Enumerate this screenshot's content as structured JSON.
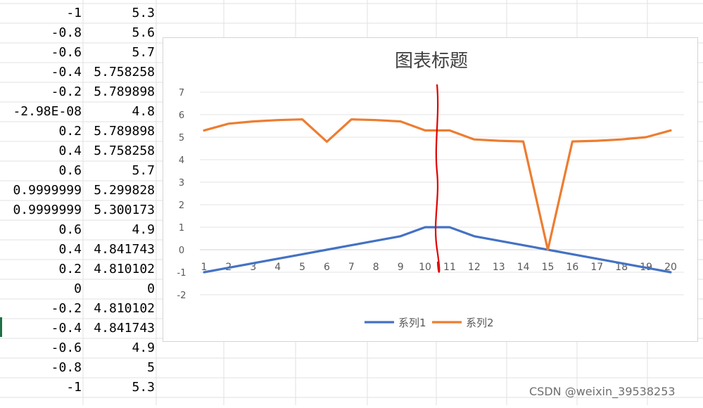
{
  "spreadsheet": {
    "rows": [
      {
        "a": "-1",
        "b": "5.3"
      },
      {
        "a": "-0.8",
        "b": "5.6"
      },
      {
        "a": "-0.6",
        "b": "5.7"
      },
      {
        "a": "-0.4",
        "b": "5.758258"
      },
      {
        "a": "-0.2",
        "b": "5.789898"
      },
      {
        "a": "-2.98E-08",
        "b": "4.8"
      },
      {
        "a": "0.2",
        "b": "5.789898"
      },
      {
        "a": "0.4",
        "b": "5.758258"
      },
      {
        "a": "0.6",
        "b": "5.7"
      },
      {
        "a": "0.9999999",
        "b": "5.299828"
      },
      {
        "a": "0.9999999",
        "b": "5.300173"
      },
      {
        "a": "0.6",
        "b": "4.9"
      },
      {
        "a": "0.4",
        "b": "4.841743"
      },
      {
        "a": "0.2",
        "b": "4.810102"
      },
      {
        "a": "0",
        "b": "0"
      },
      {
        "a": "-0.2",
        "b": "4.810102"
      },
      {
        "a": "-0.4",
        "b": "4.841743"
      },
      {
        "a": "-0.6",
        "b": "4.9"
      },
      {
        "a": "-0.8",
        "b": "5"
      },
      {
        "a": "-1",
        "b": "5.3"
      }
    ]
  },
  "chart_data": {
    "type": "line",
    "title": "图表标题",
    "xlabel": "",
    "ylabel": "",
    "categories": [
      "1",
      "2",
      "3",
      "4",
      "5",
      "6",
      "7",
      "8",
      "9",
      "10",
      "11",
      "12",
      "13",
      "14",
      "15",
      "16",
      "17",
      "18",
      "19",
      "20"
    ],
    "ylim": [
      -2,
      7
    ],
    "yticks": [
      "7",
      "6",
      "5",
      "4",
      "3",
      "2",
      "1",
      "0",
      "-1",
      "-2"
    ],
    "grid": true,
    "legend": "bottom",
    "series": [
      {
        "name": "系列1",
        "color": "#4472c4",
        "values": [
          -1,
          -0.8,
          -0.6,
          -0.4,
          -0.2,
          0,
          0.2,
          0.4,
          0.6,
          1,
          1,
          0.6,
          0.4,
          0.2,
          0,
          -0.2,
          -0.4,
          -0.6,
          -0.8,
          -1
        ]
      },
      {
        "name": "系列2",
        "color": "#ed7d31",
        "values": [
          5.3,
          5.6,
          5.7,
          5.758258,
          5.789898,
          4.8,
          5.789898,
          5.758258,
          5.7,
          5.299828,
          5.300173,
          4.9,
          4.841743,
          4.810102,
          0,
          4.810102,
          4.841743,
          4.9,
          5,
          5.3
        ]
      }
    ],
    "annotation_color": "#e00000"
  },
  "watermark": "CSDN @weixin_39538253"
}
